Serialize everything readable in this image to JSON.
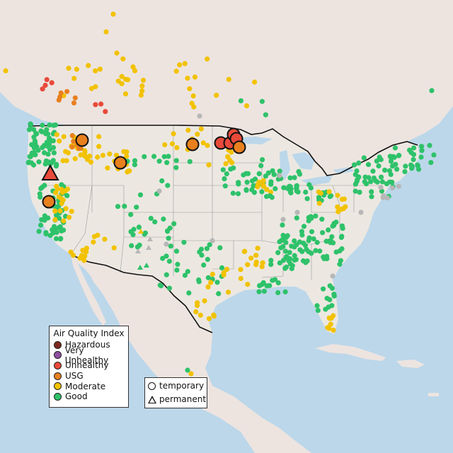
{
  "legend": {
    "title": "Air Quality Index",
    "categories": [
      {
        "label": "Hazardous",
        "color": "#7e2a1e"
      },
      {
        "label": "Very Unhealthy",
        "color": "#8f4fa0"
      },
      {
        "label": "Unhealthy",
        "color": "#e84a3a"
      },
      {
        "label": "USG",
        "color": "#e8801e"
      },
      {
        "label": "Moderate",
        "color": "#f2c200"
      },
      {
        "label": "Good",
        "color": "#2ec26a"
      }
    ]
  },
  "monitor_types": {
    "temporary": "temporary",
    "permanent": "permanent"
  },
  "colors": {
    "ocean": "#bcd7ea",
    "land": "#ece8e1",
    "canada": "#ede4e0",
    "borders": "#111111",
    "state_lines": "#9a9a9a",
    "no_data": "#b7b7b7"
  }
}
